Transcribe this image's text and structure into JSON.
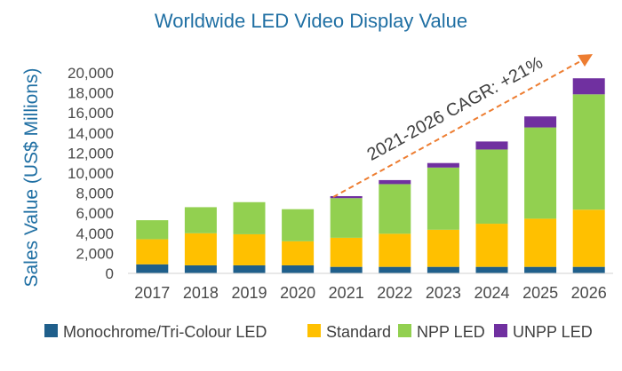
{
  "chart_data": {
    "type": "bar",
    "stacked": true,
    "title": "Worldwide LED Video Display Value",
    "xlabel": "",
    "ylabel": "Sales Value (US$ Millions)",
    "ylim": [
      0,
      20000
    ],
    "yticks": [
      0,
      2000,
      4000,
      6000,
      8000,
      10000,
      12000,
      14000,
      16000,
      18000,
      20000
    ],
    "ytick_labels": [
      "0",
      "2,000",
      "4,000",
      "6,000",
      "8,000",
      "10,000",
      "12,000",
      "14,000",
      "16,000",
      "18,000",
      "20,000"
    ],
    "categories": [
      "2017",
      "2018",
      "2019",
      "2020",
      "2021",
      "2022",
      "2023",
      "2024",
      "2025",
      "2026"
    ],
    "series": [
      {
        "name": "Monochrome/Tri-Colour LED",
        "color": "#1f5f8b",
        "values": [
          900,
          800,
          800,
          800,
          650,
          650,
          650,
          650,
          650,
          650
        ]
      },
      {
        "name": "Standard",
        "color": "#ffc000",
        "values": [
          2500,
          3200,
          3100,
          2400,
          2900,
          3300,
          3700,
          4300,
          4800,
          5700
        ]
      },
      {
        "name": "NPP LED",
        "color": "#92d050",
        "values": [
          1900,
          2600,
          3200,
          3200,
          3950,
          4950,
          6200,
          7400,
          9100,
          11500
        ]
      },
      {
        "name": "UNPP LED",
        "color": "#7030a0",
        "values": [
          0,
          0,
          0,
          0,
          200,
          400,
          450,
          800,
          1100,
          1600
        ]
      }
    ],
    "annotation": {
      "text": "2021-2026 CAGR: +21%",
      "arrow_color": "#ed7d31"
    },
    "legend": "bottom",
    "grid": false
  }
}
